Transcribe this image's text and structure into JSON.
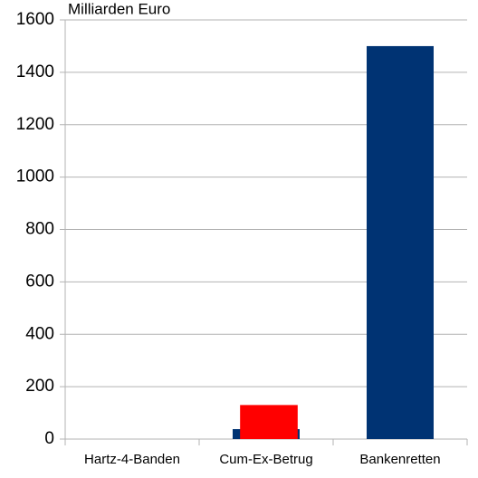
{
  "chart_data": {
    "type": "bar",
    "title": "Milliarden Euro",
    "categories": [
      "Hartz-4-Banden",
      "Cum-Ex-Betrug",
      "Bankenretten"
    ],
    "series": [
      {
        "color": "#003373",
        "values": [
          0,
          38,
          1500
        ]
      },
      {
        "color": "#ff0000",
        "values": [
          null,
          130,
          null
        ]
      }
    ],
    "ylim": [
      0,
      1600
    ],
    "yticks": [
      0,
      200,
      400,
      600,
      800,
      1000,
      1200,
      1400,
      1600
    ],
    "grid": true
  }
}
